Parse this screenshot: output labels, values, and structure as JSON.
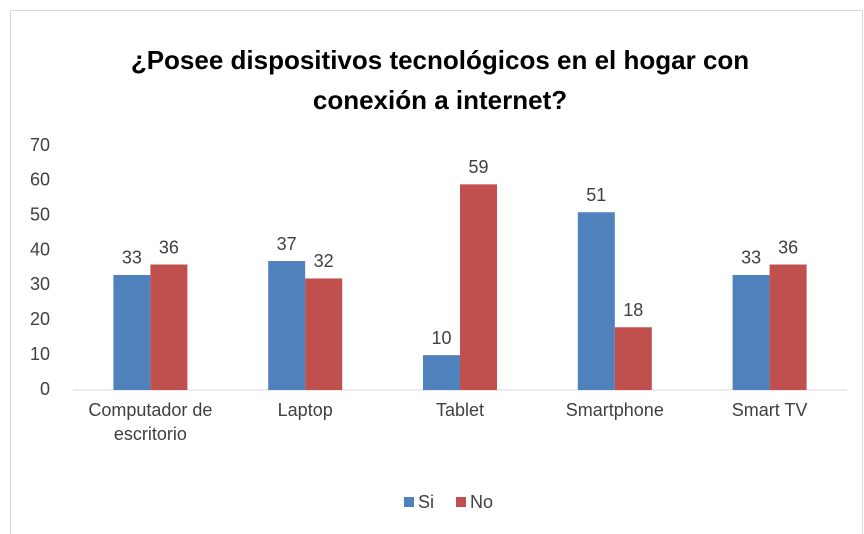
{
  "chart_data": {
    "type": "bar",
    "title": "¿Posee dispositivos tecnológicos en el hogar con conexión a internet?",
    "categories": [
      "Computador de escritorio",
      "Laptop",
      "Tablet",
      "Smartphone",
      "Smart TV"
    ],
    "series": [
      {
        "name": "Si",
        "color": "#4f81bd",
        "values": [
          33,
          37,
          10,
          51,
          33
        ]
      },
      {
        "name": "No",
        "color": "#c0504d",
        "values": [
          36,
          32,
          59,
          18,
          36
        ]
      }
    ],
    "ylim": [
      0,
      70
    ],
    "yticks": [
      0,
      10,
      20,
      30,
      40,
      50,
      60,
      70
    ],
    "grid": false,
    "legend": "bottom"
  }
}
